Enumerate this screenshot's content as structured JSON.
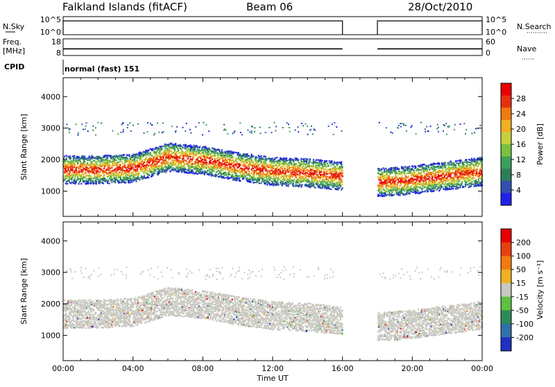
{
  "header": {
    "site": "Falkland Islands (fitACF)",
    "beam": "Beam 06",
    "date": "28/Oct/2010"
  },
  "labels": {
    "nsky": "N.Sky",
    "nsearch": "N.Search",
    "freq": "Freq.",
    "freq_unit": "[MHz]",
    "nave": "Nave",
    "cpid": "CPID",
    "mode": "normal (fast) 151",
    "xlabel": "Time UT"
  },
  "chart_data": [
    {
      "type": "line",
      "name": "noise-panel",
      "ticks_left": [
        "10^5",
        "10^0"
      ],
      "ticks_right": [
        "10^5",
        "10^0"
      ],
      "gap_hours": [
        16.0,
        18.0
      ],
      "segments": [
        {
          "from_hour": 0.0,
          "to_hour": 16.0,
          "level_log10": 4.2
        },
        {
          "from_hour": 18.0,
          "to_hour": 24.0,
          "level_log10": 4.2
        }
      ]
    },
    {
      "type": "scatter",
      "name": "freq-nave-panel",
      "ticks_left": [
        "18",
        "8"
      ],
      "ticks_right": [
        "60",
        "0"
      ],
      "gap_hours": [
        16.0,
        18.0
      ],
      "freq_mhz": 12.0
    },
    {
      "type": "heatmap",
      "name": "power",
      "ylabel": "Slant Range [km]",
      "yticks": [
        1000,
        2000,
        3000,
        4000
      ],
      "ylim": [
        200,
        4600
      ],
      "xlim_hours": [
        0,
        24
      ],
      "xticks": [
        "00:00",
        "04:00",
        "08:00",
        "12:00",
        "16:00",
        "20:00",
        "00:00"
      ],
      "gap_hours": [
        16.0,
        18.0
      ],
      "colorbar": {
        "label": "Power [dB]",
        "ticks": [
          "4",
          "8",
          "12",
          "16",
          "20",
          "24",
          "28"
        ],
        "colors": [
          "#2020e8",
          "#3050b0",
          "#2e7d5a",
          "#3aa05a",
          "#78c040",
          "#c8d040",
          "#f0b020",
          "#f07a10",
          "#e83010",
          "#e80000"
        ]
      },
      "bands": [
        {
          "start_hour": 0.0,
          "end_hour": 16.0,
          "center_km": [
            1700,
            1700,
            1750,
            2100,
            2000,
            1800,
            1650,
            1600,
            1500
          ],
          "color": "#e84010"
        },
        {
          "start_hour": 18.0,
          "end_hour": 24.0,
          "center_km": [
            1300,
            1350,
            1450,
            1550,
            1650
          ],
          "color": "#e84010"
        }
      ]
    },
    {
      "type": "heatmap",
      "name": "velocity",
      "ylabel": "Slant Range [km]",
      "yticks": [
        1000,
        2000,
        3000,
        4000
      ],
      "ylim": [
        200,
        4600
      ],
      "xlim_hours": [
        0,
        24
      ],
      "xticks": [
        "00:00",
        "04:00",
        "08:00",
        "12:00",
        "16:00",
        "20:00",
        "00:00"
      ],
      "gap_hours": [
        16.0,
        18.0
      ],
      "colorbar": {
        "label": "Velocity [m s⁻¹]",
        "ticks": [
          "200",
          "100",
          "50",
          "15",
          "-15",
          "-50",
          "-100",
          "-200"
        ],
        "colors": [
          "#2030c0",
          "#3070a8",
          "#2e8a5a",
          "#60c040",
          "#c8c8c0",
          "#f0b020",
          "#f07a10",
          "#e84010",
          "#e80000"
        ]
      },
      "dominant_color": "#c8c8c0"
    }
  ]
}
